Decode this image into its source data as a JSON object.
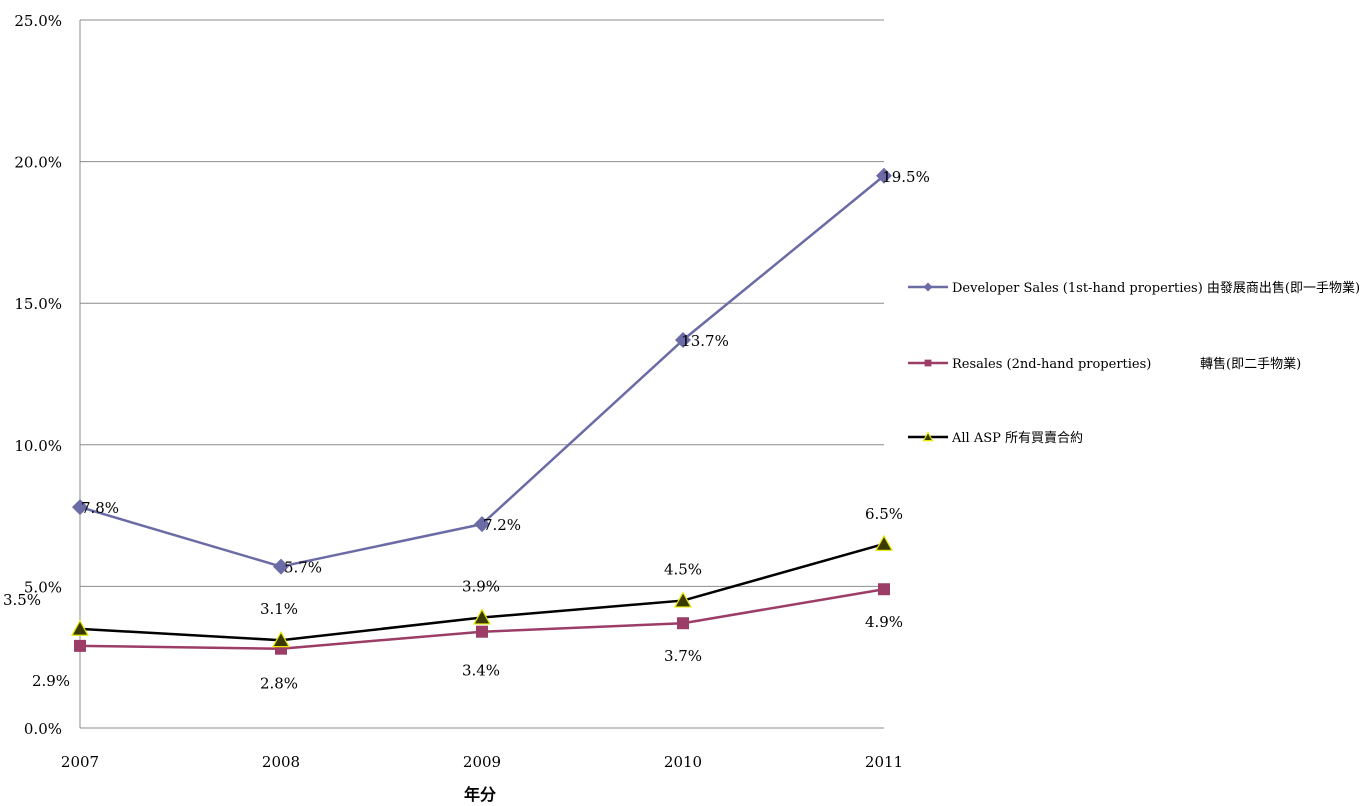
{
  "chart_data": {
    "type": "line",
    "xlabel": "年分",
    "ylabel": "",
    "categories": [
      "2007",
      "2008",
      "2009",
      "2010",
      "2011"
    ],
    "ylim": [
      0,
      25
    ],
    "yticks": [
      "0.0%",
      "5.0%",
      "10.0%",
      "15.0%",
      "20.0%",
      "25.0%"
    ],
    "grid": true,
    "legend_position": "right",
    "series": [
      {
        "name": "Developer Sales (1st-hand properties) 由發展商出售(即一手物業)",
        "values": [
          7.8,
          5.7,
          7.2,
          13.7,
          19.5
        ],
        "labels": [
          "7.8%",
          "5.7%",
          "7.2%",
          "13.7%",
          "19.5%"
        ],
        "color": "#6B6BA6",
        "marker": "diamond"
      },
      {
        "name": "Resales (2nd-hand properties)",
        "name_zh": "轉售(即二手物業)",
        "values": [
          2.9,
          2.8,
          3.4,
          3.7,
          4.9
        ],
        "labels": [
          "2.9%",
          "2.8%",
          "3.4%",
          "3.7%",
          "4.9%"
        ],
        "color": "#9B3D66",
        "marker": "square"
      },
      {
        "name": "All ASP 所有買賣合約",
        "values": [
          3.5,
          3.1,
          3.9,
          4.5,
          6.5
        ],
        "labels": [
          "3.5%",
          "3.1%",
          "3.9%",
          "4.5%",
          "6.5%"
        ],
        "color": "#000000",
        "marker": "triangle",
        "marker_fill": "#3a3a00",
        "marker_stroke": "#e8e800"
      }
    ]
  }
}
